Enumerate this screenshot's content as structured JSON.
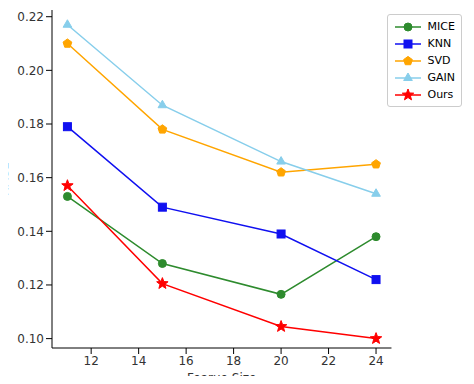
{
  "chart_data": {
    "type": "line",
    "x_label": "Fearue Size",
    "y_label": "RMSE",
    "x": [
      11,
      15,
      20,
      24
    ],
    "xlim": [
      10.35,
      24.65
    ],
    "xticks": [
      12,
      14,
      16,
      18,
      20,
      22,
      24
    ],
    "ylim": [
      0.0965,
      0.2225
    ],
    "yticks": [
      {
        "value": 0.1,
        "label": "0.10"
      },
      0.12,
      0.14,
      0.16,
      0.18,
      {
        "value": 0.2,
        "label": "0.20"
      },
      0.22
    ],
    "grid": false,
    "legend": "top-right",
    "series": [
      {
        "name": "MICE",
        "color": "#2e8b2e",
        "marker": "circle",
        "values": [
          0.153,
          0.128,
          0.1165,
          0.138
        ]
      },
      {
        "name": "KNN",
        "color": "#1010f0",
        "marker": "square",
        "values": [
          0.179,
          0.149,
          0.139,
          0.122
        ]
      },
      {
        "name": "SVD",
        "color": "#ffa500",
        "marker": "pentagon",
        "values": [
          0.21,
          0.178,
          0.162,
          0.165
        ]
      },
      {
        "name": "GAIN",
        "color": "#87ceeb",
        "marker": "triangle",
        "values": [
          0.217,
          0.187,
          0.166,
          0.154
        ]
      },
      {
        "name": "Ours",
        "color": "#ff0000",
        "marker": "star",
        "values": [
          0.157,
          0.1205,
          0.1045,
          0.1
        ]
      }
    ]
  }
}
